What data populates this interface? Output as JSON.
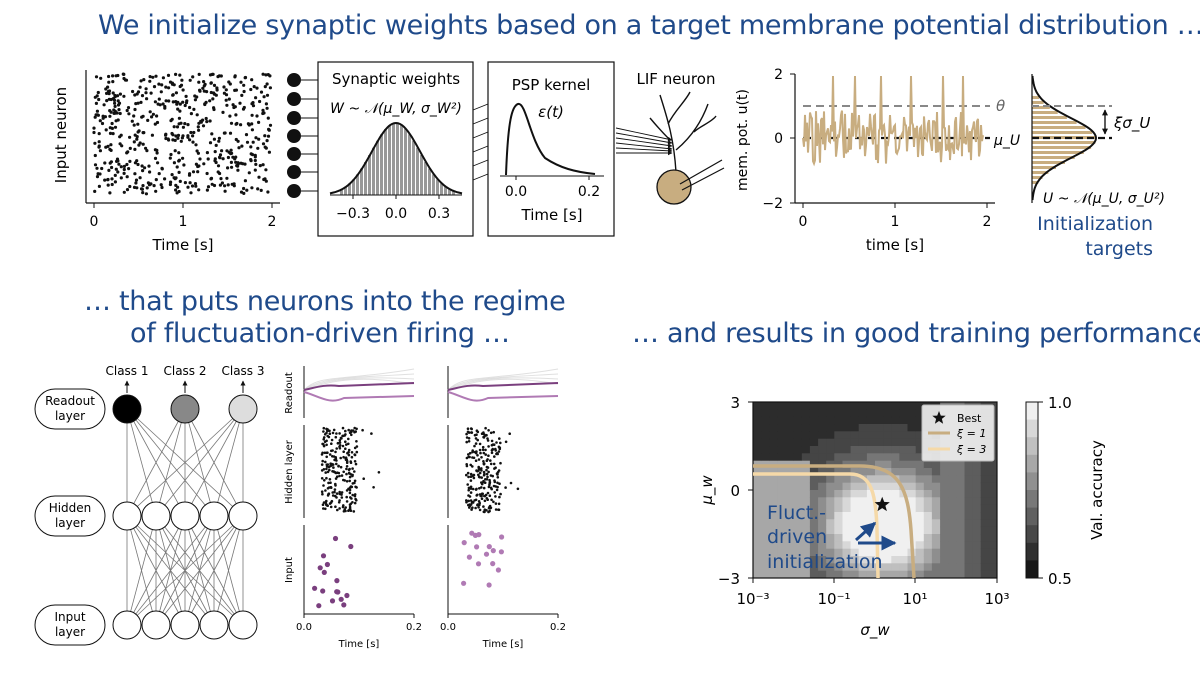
{
  "captions": {
    "top": "We initialize synaptic weights based on a target membrane potential distribution …",
    "mid_left_1": "… that puts neurons into the regime",
    "mid_left_2": "of fluctuation-driven firing …",
    "mid_right": "… and results in good training performance."
  },
  "raster": {
    "ylabel": "Input neuron",
    "xlabel": "Time [s]",
    "xticks": [
      "0",
      "1",
      "2"
    ]
  },
  "weights_box": {
    "title": "Synaptic weights",
    "formula": "W ~ 𝒩(μ_W, σ_W²)",
    "xticks": [
      "−0.3",
      "0.0",
      "0.3"
    ]
  },
  "psp_box": {
    "title": "PSP kernel",
    "formula": "ε(t)",
    "xlabel": "Time [s]",
    "xticks": [
      "0.0",
      "0.2"
    ]
  },
  "lif": {
    "title": "LIF neuron"
  },
  "membrane": {
    "ylabel": "mem. pot. u(t)",
    "xlabel": "time [s]",
    "xticks": [
      "0",
      "1",
      "2"
    ],
    "yticks": [
      "2",
      "0",
      "−2"
    ],
    "theta": "θ",
    "mu": "μ_U"
  },
  "targets": {
    "xi_label": "ξσ_U",
    "formula": "U ~ 𝒩(μ_U, σ_U²)",
    "label_1": "Initialization",
    "label_2": "targets"
  },
  "network": {
    "classes": [
      "Class 1",
      "Class 2",
      "Class 3"
    ],
    "readout": [
      "Readout",
      "layer"
    ],
    "hidden": [
      "Hidden",
      "layer"
    ],
    "input": [
      "Input",
      "layer"
    ]
  },
  "spikes_panel": {
    "row_labels": [
      "Readout",
      "Hidden layer",
      "Input"
    ],
    "xlabel": "Time [s]",
    "xticks": [
      "0.0",
      "0.2"
    ]
  },
  "colors": {
    "caption": "#1f4a8a",
    "tan": "#c8ad80",
    "tan_light": "#f5d9a8",
    "purple": "#7a3f7e",
    "purple_light": "#b07ab4"
  },
  "chart_data": {
    "type": "heatmap",
    "xlabel": "σ_w",
    "ylabel": "μ_w",
    "x_scale": "log",
    "xlim": [
      0.001,
      1000
    ],
    "ylim": [
      -3,
      3
    ],
    "xticks": [
      "10⁻³",
      "10⁻¹",
      "10¹",
      "10³"
    ],
    "yticks": [
      "3",
      "0",
      "−3"
    ],
    "colorbar": {
      "label": "Val. accuracy",
      "range": [
        0.5,
        1.0
      ],
      "ticks": [
        "1.0",
        "0.5"
      ]
    },
    "legend": [
      {
        "symbol": "star",
        "label": "Best"
      },
      {
        "symbol": "line",
        "color": "#c8ad80",
        "label": "ξ = 1"
      },
      {
        "symbol": "line",
        "color": "#f5d9a8",
        "label": "ξ = 3"
      }
    ],
    "legend_position": "top-right",
    "best_point": {
      "sigma": 1.5,
      "mu": -0.5
    },
    "annotation": [
      "Fluct.-",
      "driven",
      "initialization"
    ]
  }
}
